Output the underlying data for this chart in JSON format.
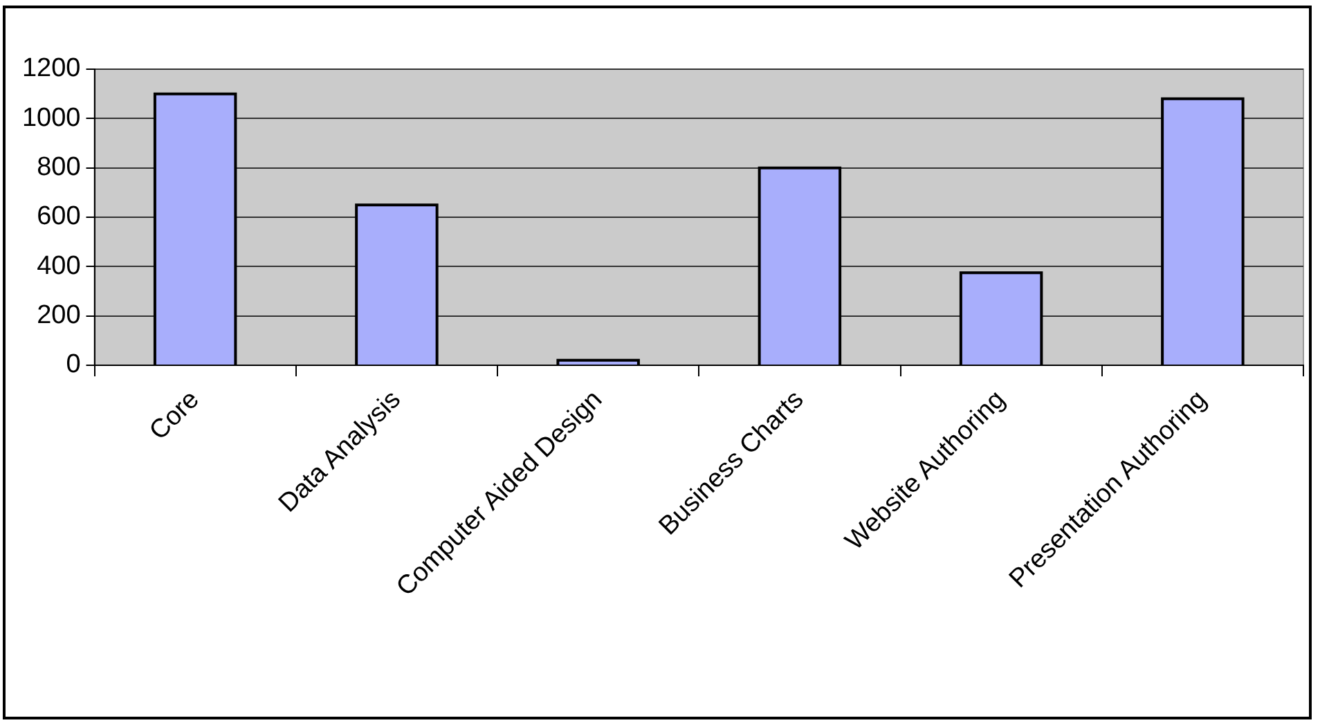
{
  "chart_data": {
    "type": "bar",
    "categories": [
      "Core",
      "Data Analysis",
      "Computer Aided Design",
      "Business Charts",
      "Website Authoring",
      "Presentation Authoring"
    ],
    "values": [
      1100,
      650,
      20,
      800,
      375,
      1080
    ],
    "color": "#a8aefc",
    "ylim": [
      0,
      1200
    ],
    "yticks": [
      0,
      200,
      400,
      600,
      800,
      1000,
      1200
    ],
    "grid": "y",
    "legend": false
  }
}
